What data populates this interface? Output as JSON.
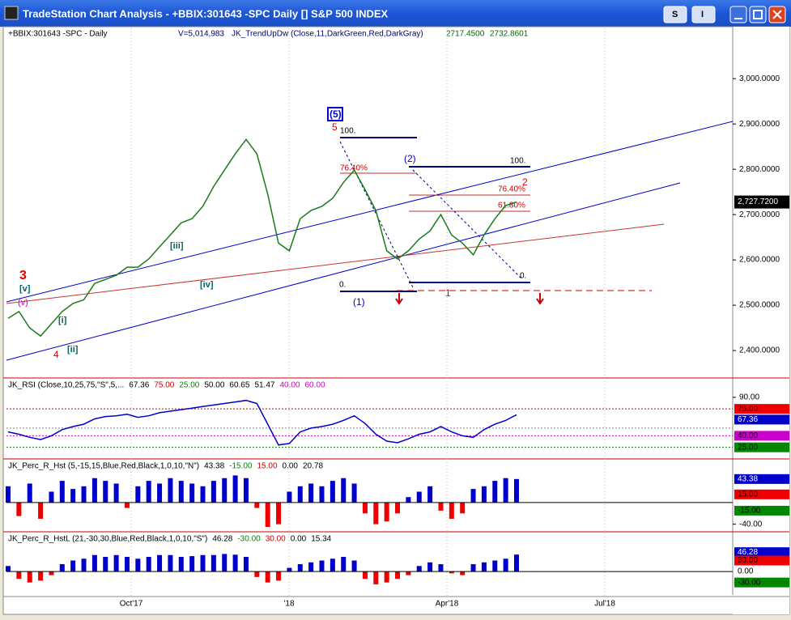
{
  "window": {
    "title": "TradeStation Chart Analysis - +BBIX:301643 -SPC Daily [] S&P 500 INDEX",
    "buttons": [
      "S",
      "I"
    ]
  },
  "price_pane": {
    "symbol": "+BBIX:301643 -SPC - Daily",
    "volume": "V=5,014,983",
    "study": "JK_TrendUpDw (Close,11,DarkGreen,Red,DarkGray)",
    "study_values": [
      "2717.4500",
      "2732.8601"
    ],
    "ylim": [
      2343,
      3111
    ],
    "yticks": [
      {
        "value": 3000,
        "label": "3,000.0000"
      },
      {
        "value": 2900,
        "label": "2,900.0000"
      },
      {
        "value": 2800,
        "label": "2,800.0000"
      },
      {
        "value": 2700,
        "label": "2,700.0000"
      },
      {
        "value": 2600,
        "label": "2,600.0000"
      },
      {
        "value": 2500,
        "label": "2,500.0000"
      },
      {
        "value": 2400,
        "label": "2,400.0000"
      }
    ],
    "last": {
      "value": 2727.72,
      "label": "2,727.7200"
    },
    "values": [
      2471,
      2486,
      2450,
      2432,
      2459,
      2486,
      2504,
      2512,
      2548,
      2557,
      2566,
      2584,
      2584,
      2602,
      2629,
      2655,
      2682,
      2691,
      2718,
      2762,
      2798,
      2834,
      2866,
      2834,
      2745,
      2637,
      2620,
      2691,
      2709,
      2718,
      2736,
      2771,
      2798,
      2755,
      2709,
      2620,
      2602,
      2620,
      2646,
      2664,
      2700,
      2655,
      2637,
      2611,
      2655,
      2691,
      2720,
      2727.72
    ],
    "annotations": [
      "(5)",
      "5",
      "(2)",
      "2",
      "(1)",
      "1",
      "3",
      "[v]",
      "(v)",
      "4",
      "[i]",
      "[ii]",
      "[iii]",
      "[iv]"
    ],
    "fib_labels": [
      "100.",
      "76.40%",
      "0.",
      "100.",
      "76.40%",
      "61.80%",
      "0."
    ]
  },
  "rsi_pane": {
    "header": "JK_RSI (Close,10,25,75,\"S\",5,...",
    "header_values": [
      "67.36",
      "75.00",
      "25.00",
      "50.00",
      "60.65",
      "51.47",
      "40.00",
      "60.00"
    ],
    "ylim": [
      12,
      112
    ],
    "axis_label": {
      "value": 90,
      "label": "90.00"
    },
    "values": [
      45,
      42,
      38,
      35,
      40,
      48,
      52,
      55,
      62,
      65,
      66,
      68,
      64,
      66,
      70,
      72,
      74,
      76,
      78,
      80,
      82,
      84,
      86,
      82,
      55,
      28,
      30,
      45,
      50,
      52,
      55,
      60,
      66,
      56,
      42,
      33,
      31,
      36,
      42,
      45,
      52,
      45,
      40,
      38,
      48,
      55,
      60,
      67.36
    ]
  },
  "percr_pane": {
    "header": "JK_Perc_R_Hst (5,-15,15,Blue,Red,Black,1,0,10,\"N\")",
    "header_values": [
      "43.38",
      "-15.00",
      "15.00",
      "0.00",
      "20.78"
    ],
    "ylim": [
      -51,
      76
    ],
    "axis_label": {
      "value": -40,
      "label": "-40.00"
    },
    "values": [
      30,
      -25,
      35,
      -30,
      20,
      40,
      25,
      30,
      45,
      40,
      35,
      -10,
      30,
      40,
      35,
      45,
      40,
      35,
      30,
      40,
      45,
      50,
      45,
      -10,
      -45,
      -40,
      20,
      30,
      35,
      30,
      40,
      45,
      35,
      -20,
      -40,
      -35,
      -20,
      10,
      20,
      30,
      -15,
      -30,
      -20,
      25,
      30,
      40,
      45,
      43.38
    ]
  },
  "hstl_pane": {
    "header": "JK_Perc_R_HstL (21,-30,30,Blue,Red,Black,1,0,10,\"S\")",
    "header_values": [
      "46.28",
      "-30.00",
      "30.00",
      "0.00",
      "15.34"
    ],
    "ylim": [
      -64,
      102
    ],
    "values": [
      15,
      -20,
      -30,
      -25,
      -10,
      20,
      30,
      35,
      45,
      40,
      45,
      40,
      35,
      40,
      45,
      45,
      40,
      42,
      45,
      45,
      48,
      46,
      40,
      -15,
      -30,
      -25,
      10,
      20,
      25,
      30,
      35,
      40,
      30,
      -20,
      -35,
      -30,
      -20,
      -10,
      15,
      25,
      20,
      -5,
      -10,
      20,
      25,
      30,
      35,
      46.28
    ]
  },
  "x_labels": [
    "Oct'17",
    "'18",
    "Apr'18",
    "Jul'18"
  ]
}
